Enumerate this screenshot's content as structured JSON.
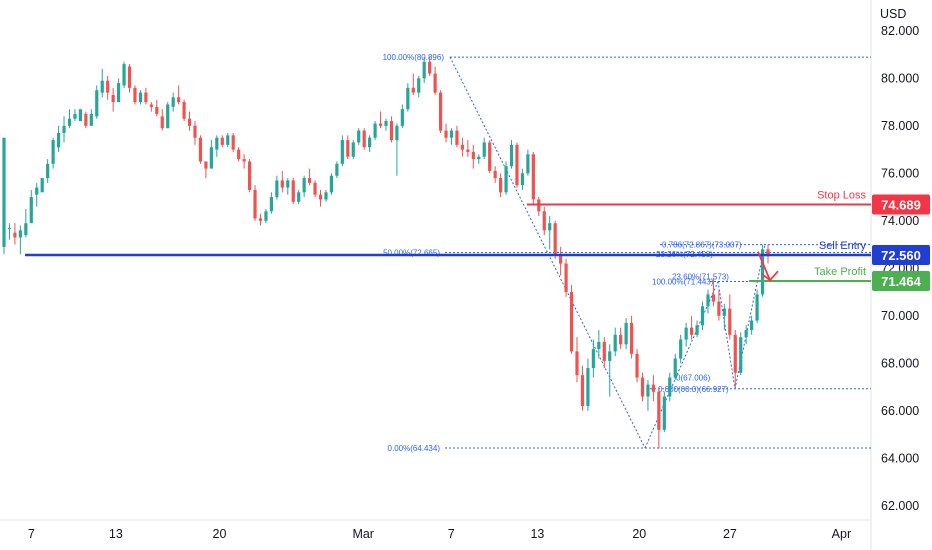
{
  "chart_data": {
    "type": "candlestick",
    "currency": "USD",
    "y_ticks": [
      "82.000",
      "80.000",
      "78.000",
      "76.000",
      "74.000",
      "72.000",
      "70.000",
      "68.000",
      "66.000",
      "64.000",
      "62.000"
    ],
    "x_ticks": [
      "7",
      "13",
      "20",
      "Mar",
      "7",
      "13",
      "20",
      "27",
      "Apr"
    ],
    "ylim": [
      61.4,
      83.3
    ],
    "colors": {
      "up": "#26a69a",
      "down": "#ef5350",
      "sell": "#1f3fd0",
      "stop": "#f23645",
      "tp": "#4caf50",
      "fib": "#2962ff"
    },
    "levels": [
      {
        "name": "Stop Loss",
        "value_text": "74.689",
        "value": 74.689,
        "color": "#f23645",
        "x_start": 0.605
      },
      {
        "name": "Sell Entry",
        "value_text": "72.560",
        "value": 72.56,
        "color": "#1f3fd0",
        "x_start": 0.0
      },
      {
        "name": "Take Profit",
        "value_text": "71.464",
        "value": 71.464,
        "color": "#4caf50",
        "x_start": 0.86
      }
    ],
    "fib_labels": [
      {
        "text": "100.00%(80.896)",
        "price": 80.896
      },
      {
        "text": "50.00%(72.665)",
        "price": 72.665
      },
      {
        "text": "0.00%(64.434)",
        "price": 64.434
      },
      {
        "text": "0.786(72.867)(73.007)",
        "price": 73.0
      },
      {
        "text": "23.26%(72.458)",
        "price": 72.6
      },
      {
        "text": "100.00%(71.443)",
        "price": 71.443
      },
      {
        "text": "23.60%(71.573)",
        "price": 71.65
      },
      {
        "text": "0(67.006)",
        "price": 67.4
      },
      {
        "text": "0.000(00.0)(66.927)",
        "price": 66.927
      }
    ],
    "candles": [
      [
        72.9,
        77.4,
        72.6,
        77.5
      ],
      [
        73.7,
        73.9,
        73.2,
        73.7
      ],
      [
        73.5,
        73.9,
        73.0,
        73.3
      ],
      [
        73.3,
        73.8,
        72.6,
        73.6
      ],
      [
        73.4,
        74.5,
        73.3,
        73.9
      ],
      [
        73.9,
        75.3,
        73.9,
        75.0
      ],
      [
        75.1,
        75.6,
        74.6,
        75.4
      ],
      [
        75.2,
        75.8,
        75.3,
        75.8
      ],
      [
        75.8,
        76.6,
        75.6,
        76.4
      ],
      [
        76.4,
        77.5,
        76.2,
        77.4
      ],
      [
        77.1,
        78.0,
        76.9,
        77.7
      ],
      [
        77.7,
        78.4,
        77.3,
        78.0
      ],
      [
        78.0,
        78.7,
        77.9,
        78.3
      ],
      [
        78.3,
        78.7,
        78.2,
        78.5
      ],
      [
        78.2,
        78.7,
        78.2,
        78.7
      ],
      [
        78.5,
        78.6,
        77.9,
        78.0
      ],
      [
        78.0,
        78.7,
        78.0,
        78.5
      ],
      [
        78.4,
        79.7,
        78.3,
        79.5
      ],
      [
        79.4,
        80.4,
        79.2,
        79.9
      ],
      [
        79.9,
        80.1,
        79.1,
        79.4
      ],
      [
        79.3,
        79.6,
        78.6,
        79.0
      ],
      [
        79.0,
        80.0,
        79.0,
        79.8
      ],
      [
        79.7,
        80.7,
        79.6,
        80.6
      ],
      [
        80.5,
        80.6,
        79.4,
        79.6
      ],
      [
        79.6,
        79.7,
        78.9,
        79.0
      ],
      [
        79.0,
        79.5,
        78.9,
        79.4
      ],
      [
        79.4,
        79.6,
        78.9,
        79.0
      ],
      [
        78.9,
        79.0,
        78.6,
        78.8
      ],
      [
        78.8,
        79.1,
        78.4,
        78.5
      ],
      [
        78.4,
        78.7,
        77.8,
        77.9
      ],
      [
        77.9,
        79.0,
        77.9,
        78.9
      ],
      [
        78.8,
        79.4,
        78.6,
        79.2
      ],
      [
        79.2,
        79.7,
        78.9,
        79.0
      ],
      [
        79.0,
        79.1,
        78.2,
        78.3
      ],
      [
        78.3,
        78.6,
        77.8,
        78.0
      ],
      [
        78.0,
        78.2,
        77.2,
        77.5
      ],
      [
        77.5,
        77.6,
        76.4,
        76.5
      ],
      [
        76.5,
        76.5,
        75.8,
        76.2
      ],
      [
        76.2,
        77.4,
        76.2,
        77.1
      ],
      [
        77.0,
        77.6,
        76.7,
        77.5
      ],
      [
        77.5,
        77.6,
        77.1,
        77.2
      ],
      [
        77.2,
        77.7,
        77.1,
        77.6
      ],
      [
        77.6,
        77.7,
        76.9,
        77.0
      ],
      [
        77.0,
        77.1,
        76.5,
        76.6
      ],
      [
        76.6,
        76.8,
        76.2,
        76.5
      ],
      [
        76.5,
        76.6,
        75.2,
        75.3
      ],
      [
        75.3,
        75.5,
        74.0,
        74.1
      ],
      [
        74.1,
        74.3,
        73.8,
        74.0
      ],
      [
        74.0,
        74.5,
        73.9,
        74.4
      ],
      [
        74.4,
        75.2,
        74.3,
        75.0
      ],
      [
        75.0,
        75.9,
        74.9,
        75.7
      ],
      [
        75.7,
        76.1,
        75.2,
        75.4
      ],
      [
        75.4,
        75.8,
        75.1,
        75.7
      ],
      [
        75.7,
        75.8,
        74.7,
        74.8
      ],
      [
        74.8,
        75.3,
        74.7,
        75.2
      ],
      [
        75.2,
        75.9,
        75.0,
        75.8
      ],
      [
        75.8,
        76.2,
        75.5,
        75.6
      ],
      [
        75.6,
        75.7,
        75.0,
        75.1
      ],
      [
        75.1,
        75.3,
        74.6,
        74.9
      ],
      [
        74.9,
        75.3,
        74.8,
        75.2
      ],
      [
        75.2,
        76.0,
        75.1,
        75.9
      ],
      [
        75.9,
        76.5,
        75.8,
        76.4
      ],
      [
        76.4,
        77.6,
        76.3,
        77.4
      ],
      [
        77.4,
        77.6,
        76.6,
        76.7
      ],
      [
        76.7,
        77.4,
        76.6,
        77.3
      ],
      [
        77.3,
        77.9,
        77.2,
        77.8
      ],
      [
        77.8,
        77.9,
        77.0,
        77.1
      ],
      [
        77.1,
        77.6,
        76.9,
        77.5
      ],
      [
        77.5,
        78.2,
        77.4,
        78.1
      ],
      [
        78.1,
        78.6,
        77.9,
        78.0
      ],
      [
        78.0,
        78.3,
        77.8,
        78.2
      ],
      [
        78.2,
        78.4,
        77.3,
        77.4
      ],
      [
        77.4,
        78.1,
        75.9,
        78.0
      ],
      [
        78.0,
        78.9,
        77.9,
        78.7
      ],
      [
        78.7,
        79.8,
        78.6,
        79.6
      ],
      [
        79.6,
        80.2,
        79.3,
        79.4
      ],
      [
        79.4,
        80.1,
        79.2,
        80.0
      ],
      [
        80.0,
        80.9,
        79.8,
        80.7
      ],
      [
        80.7,
        80.9,
        80.1,
        80.2
      ],
      [
        80.2,
        80.5,
        79.3,
        79.4
      ],
      [
        79.4,
        79.5,
        77.7,
        77.8
      ],
      [
        77.8,
        78.1,
        77.3,
        77.5
      ],
      [
        77.5,
        77.9,
        77.2,
        77.8
      ],
      [
        77.8,
        78.0,
        77.1,
        77.2
      ],
      [
        77.2,
        77.5,
        76.7,
        77.0
      ],
      [
        77.0,
        77.4,
        76.7,
        76.9
      ],
      [
        76.9,
        77.2,
        76.2,
        76.6
      ],
      [
        76.6,
        76.8,
        76.4,
        76.7
      ],
      [
        76.7,
        77.5,
        76.6,
        77.3
      ],
      [
        77.3,
        77.4,
        76.0,
        76.1
      ],
      [
        76.1,
        76.3,
        75.6,
        75.8
      ],
      [
        75.8,
        76.0,
        75.0,
        75.2
      ],
      [
        75.2,
        76.5,
        75.1,
        76.3
      ],
      [
        76.3,
        77.4,
        76.2,
        77.2
      ],
      [
        77.2,
        77.3,
        75.4,
        75.5
      ],
      [
        75.5,
        76.2,
        75.3,
        76.0
      ],
      [
        76.0,
        77.0,
        75.9,
        76.8
      ],
      [
        76.8,
        76.9,
        74.7,
        74.9
      ],
      [
        74.9,
        75.0,
        74.2,
        74.4
      ],
      [
        74.4,
        74.6,
        73.4,
        73.6
      ],
      [
        73.6,
        74.2,
        72.8,
        73.9
      ],
      [
        73.9,
        74.0,
        72.4,
        72.6
      ],
      [
        72.6,
        72.9,
        71.7,
        72.2
      ],
      [
        72.2,
        72.4,
        70.8,
        71.0
      ],
      [
        71.0,
        71.3,
        68.4,
        68.5
      ],
      [
        68.5,
        69.1,
        67.2,
        67.5
      ],
      [
        67.5,
        67.9,
        66.0,
        66.2
      ],
      [
        66.2,
        68.2,
        66.0,
        67.8
      ],
      [
        67.8,
        69.0,
        67.4,
        68.6
      ],
      [
        68.6,
        69.4,
        68.2,
        68.9
      ],
      [
        68.9,
        69.1,
        67.8,
        68.1
      ],
      [
        68.1,
        68.8,
        66.6,
        68.5
      ],
      [
        68.5,
        69.5,
        68.3,
        69.2
      ],
      [
        69.2,
        69.5,
        68.6,
        68.8
      ],
      [
        68.8,
        69.9,
        68.6,
        69.7
      ],
      [
        69.7,
        70.0,
        68.2,
        68.4
      ],
      [
        68.4,
        68.6,
        67.2,
        67.4
      ],
      [
        67.4,
        67.6,
        66.4,
        66.6
      ],
      [
        66.6,
        67.3,
        66.0,
        67.1
      ],
      [
        67.1,
        67.5,
        66.4,
        66.8
      ],
      [
        66.8,
        67.0,
        64.4,
        65.2
      ],
      [
        65.2,
        66.8,
        65.1,
        66.6
      ],
      [
        66.6,
        67.6,
        66.4,
        67.4
      ],
      [
        67.4,
        68.4,
        67.3,
        68.2
      ],
      [
        68.2,
        69.2,
        68.0,
        69.0
      ],
      [
        69.0,
        69.7,
        68.7,
        69.5
      ],
      [
        69.5,
        70.0,
        69.0,
        69.2
      ],
      [
        69.2,
        69.8,
        69.1,
        69.6
      ],
      [
        69.6,
        70.6,
        69.4,
        70.4
      ],
      [
        70.4,
        71.1,
        70.1,
        70.9
      ],
      [
        70.9,
        71.6,
        70.4,
        70.6
      ],
      [
        70.6,
        71.1,
        69.8,
        70.0
      ],
      [
        70.0,
        70.5,
        69.4,
        70.3
      ],
      [
        70.3,
        70.9,
        69.0,
        69.2
      ],
      [
        69.2,
        69.4,
        67.0,
        67.6
      ],
      [
        67.6,
        69.3,
        67.5,
        69.1
      ],
      [
        69.1,
        69.6,
        68.8,
        69.4
      ],
      [
        69.4,
        70.0,
        69.2,
        69.8
      ],
      [
        69.8,
        71.1,
        69.7,
        70.9
      ],
      [
        70.9,
        73.0,
        70.8,
        72.8
      ],
      [
        72.8,
        73.0,
        72.2,
        72.5
      ]
    ]
  }
}
